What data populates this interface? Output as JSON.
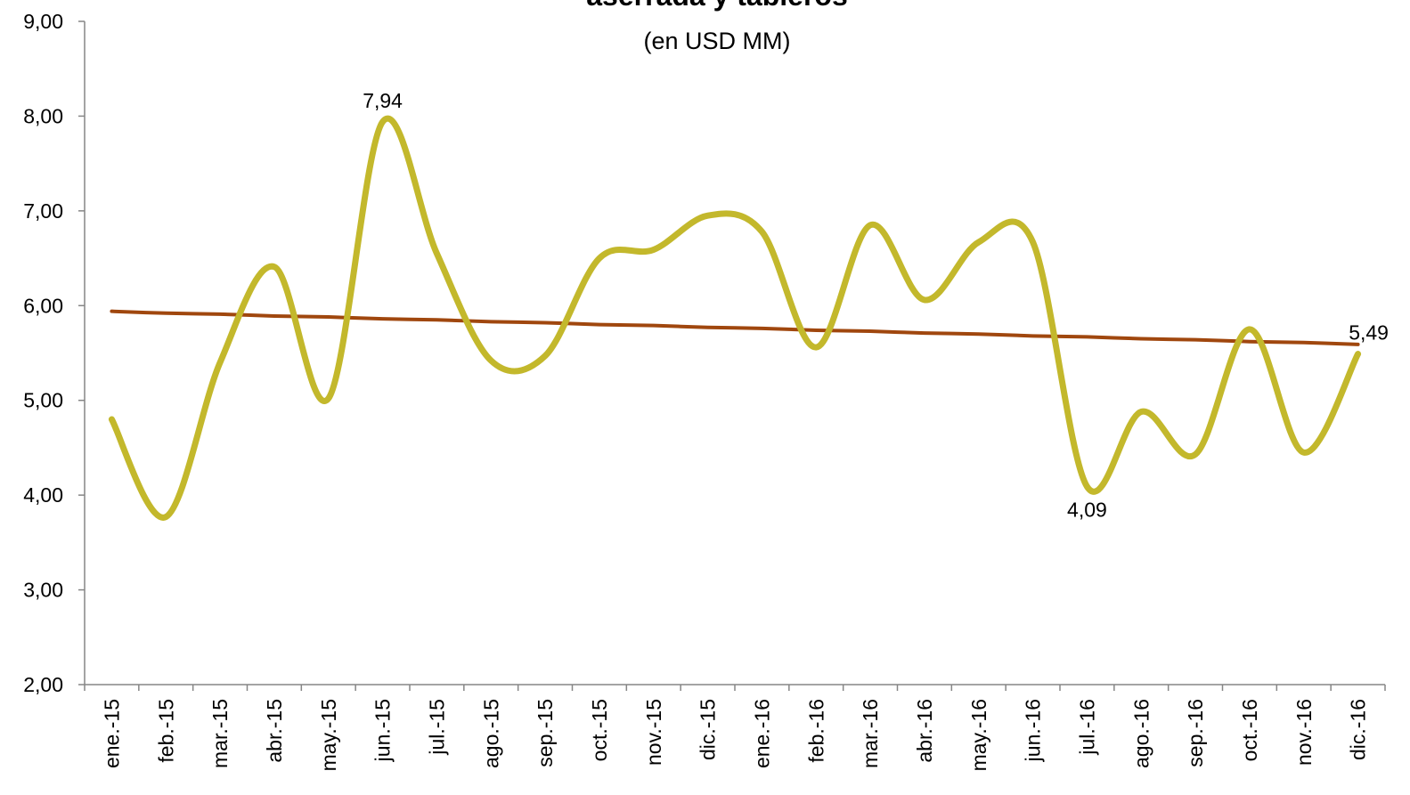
{
  "chart_data": {
    "type": "line",
    "title": "aserrada y tableros",
    "subtitle": "(en USD MM)",
    "categories": [
      "ene.-15",
      "feb.-15",
      "mar.-15",
      "abr.-15",
      "may.-15",
      "jun.-15",
      "jul.-15",
      "ago.-15",
      "sep.-15",
      "oct.-15",
      "nov.-15",
      "dic.-15",
      "ene.-16",
      "feb.-16",
      "mar.-16",
      "abr.-16",
      "may.-16",
      "jun.-16",
      "jul.-16",
      "ago.-16",
      "sep.-16",
      "oct.-16",
      "nov.-16",
      "dic.-16"
    ],
    "series": [
      {
        "color": "#c3b82c",
        "values": [
          4.8,
          3.77,
          5.4,
          6.41,
          5.02,
          7.94,
          6.55,
          5.42,
          5.47,
          6.5,
          6.59,
          6.95,
          6.78,
          5.56,
          6.85,
          6.06,
          6.67,
          6.67,
          4.09,
          4.88,
          4.43,
          5.75,
          4.45,
          5.49
        ],
        "value_labels": [
          null,
          null,
          null,
          null,
          null,
          "7,94",
          null,
          null,
          null,
          null,
          null,
          null,
          null,
          null,
          null,
          null,
          null,
          null,
          "4,09",
          null,
          null,
          null,
          null,
          "5,49"
        ]
      },
      {
        "color": "#a0470e",
        "values": [
          5.94,
          5.92,
          5.91,
          5.89,
          5.88,
          5.86,
          5.85,
          5.83,
          5.82,
          5.8,
          5.79,
          5.77,
          5.76,
          5.74,
          5.73,
          5.71,
          5.7,
          5.68,
          5.67,
          5.65,
          5.64,
          5.62,
          5.61,
          5.59
        ]
      }
    ],
    "ylim": [
      2,
      9
    ],
    "yticks": [
      {
        "value": 2,
        "label": "2,00"
      },
      {
        "value": 3,
        "label": "3,00"
      },
      {
        "value": 4,
        "label": "4,00"
      },
      {
        "value": 5,
        "label": "5,00"
      },
      {
        "value": 6,
        "label": "6,00"
      },
      {
        "value": 7,
        "label": "7,00"
      },
      {
        "value": 8,
        "label": "8,00"
      },
      {
        "value": 9,
        "label": "9,00"
      }
    ]
  }
}
